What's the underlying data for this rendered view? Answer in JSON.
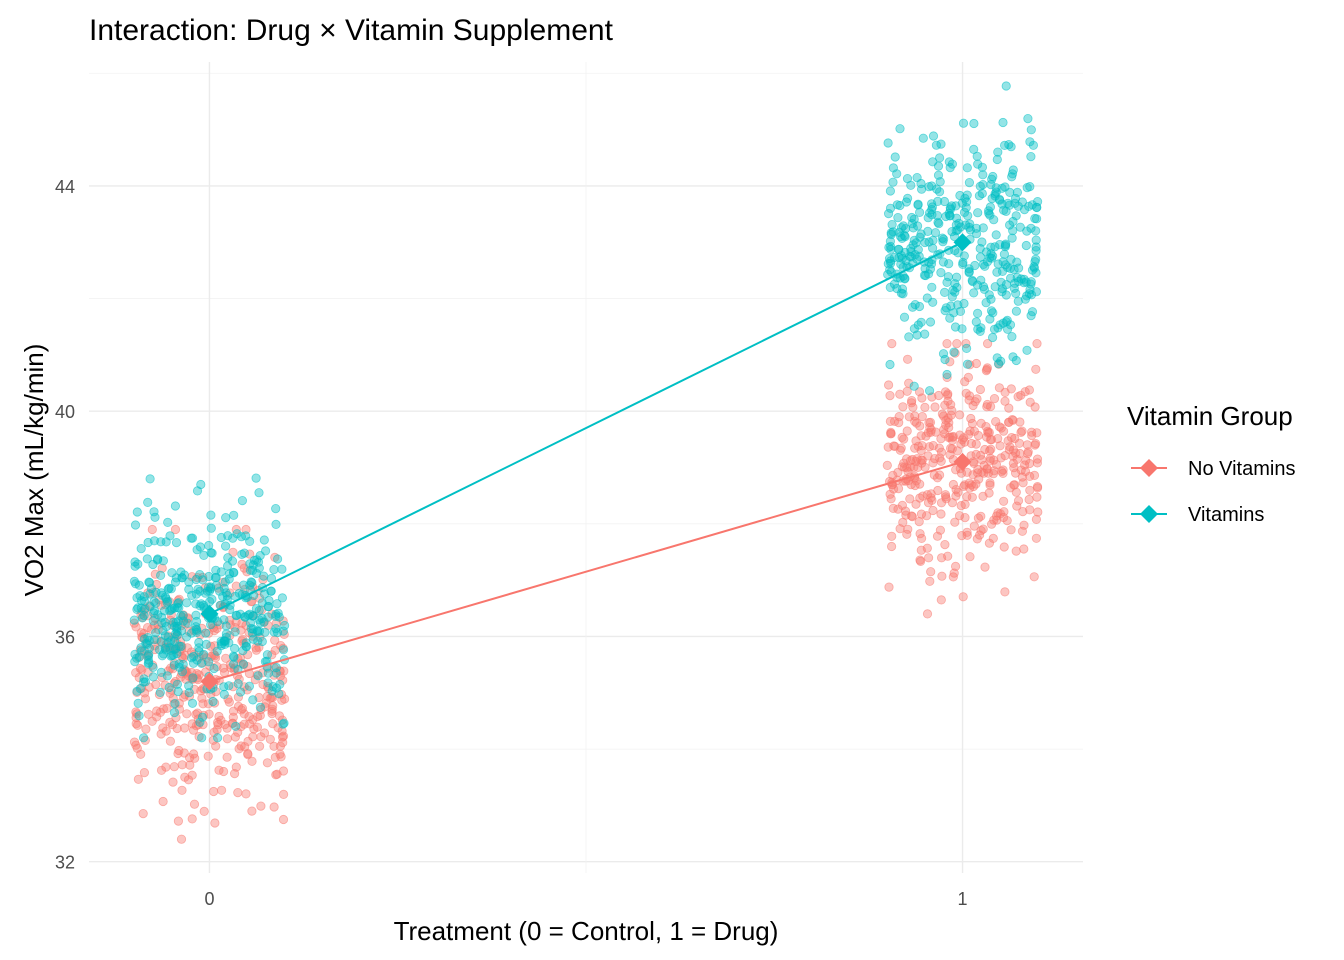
{
  "chart_data": {
    "type": "scatter",
    "title": "Interaction: Drug × Vitamin Supplement",
    "xlabel": "Treatment (0 = Control, 1 = Drug)",
    "ylabel": "VO2 Max (mL/kg/min)",
    "x_ticks": [
      "0",
      "1"
    ],
    "y_ticks": [
      "32",
      "36",
      "40",
      "44"
    ],
    "xlim": [
      -0.16,
      1.16
    ],
    "ylim": [
      31.8,
      46.2
    ],
    "grid": true,
    "legend": {
      "title": "Vitamin Group",
      "placement": "right",
      "entries": [
        "No Vitamins",
        "Vitamins"
      ]
    },
    "jitter_width": 0.1,
    "points_per_group": 400,
    "series": [
      {
        "name": "No Vitamins",
        "color": "#F8766D",
        "means": [
          {
            "x": 0,
            "y": 35.2
          },
          {
            "x": 1,
            "y": 39.1
          }
        ],
        "spread": [
          {
            "x": 0,
            "sd": 1.1,
            "min": 32.4,
            "max": 37.9
          },
          {
            "x": 1,
            "sd": 0.95,
            "min": 36.4,
            "max": 41.2
          }
        ]
      },
      {
        "name": "Vitamins",
        "color": "#00BFC4",
        "means": [
          {
            "x": 0,
            "y": 36.4
          },
          {
            "x": 1,
            "y": 43.0
          }
        ],
        "spread": [
          {
            "x": 0,
            "sd": 0.85,
            "min": 34.2,
            "max": 39.1
          },
          {
            "x": 1,
            "sd": 0.95,
            "min": 40.1,
            "max": 45.9
          }
        ]
      }
    ]
  }
}
